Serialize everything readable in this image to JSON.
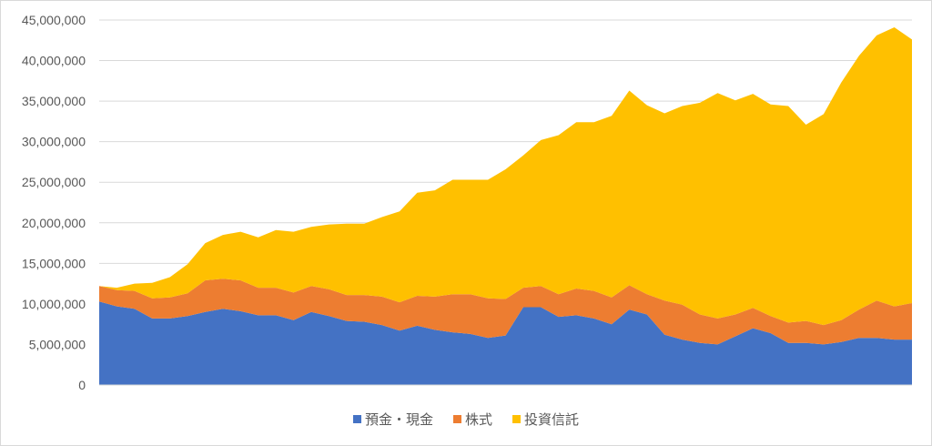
{
  "chart_data": {
    "type": "area",
    "stacked": true,
    "title": "",
    "xlabel": "",
    "ylabel": "",
    "ylim": [
      0,
      45000000
    ],
    "yticks": [
      0,
      5000000,
      10000000,
      15000000,
      20000000,
      25000000,
      30000000,
      35000000,
      40000000,
      45000000
    ],
    "ytick_labels": [
      "0",
      "5,000,000",
      "10,000,000",
      "15,000,000",
      "20,000,000",
      "25,000,000",
      "30,000,000",
      "35,000,000",
      "40,000,000",
      "45,000,000"
    ],
    "grid": true,
    "legend_position": "bottom",
    "x": [
      1,
      2,
      3,
      4,
      5,
      6,
      7,
      8,
      9,
      10,
      11,
      12,
      13,
      14,
      15,
      16,
      17,
      18,
      19,
      20,
      21,
      22,
      23,
      24,
      25,
      26,
      27,
      28,
      29,
      30,
      31,
      32,
      33,
      34,
      35,
      36,
      37,
      38,
      39,
      40,
      41,
      42,
      43,
      44,
      45,
      46,
      47
    ],
    "series": [
      {
        "name": "預金・現金",
        "color": "#4472C4",
        "values": [
          10300000,
          9700000,
          9400000,
          8200000,
          8200000,
          8500000,
          9000000,
          9400000,
          9100000,
          8600000,
          8600000,
          8000000,
          9000000,
          8500000,
          7900000,
          7800000,
          7400000,
          6700000,
          7300000,
          6800000,
          6500000,
          6300000,
          5800000,
          6100000,
          9600000,
          9600000,
          8400000,
          8600000,
          8200000,
          7500000,
          9300000,
          8700000,
          6200000,
          5600000,
          5200000,
          5000000,
          6000000,
          7000000,
          6400000,
          5200000,
          5200000,
          5000000,
          5300000,
          5800000,
          5800000,
          5600000,
          5600000
        ]
      },
      {
        "name": "株式",
        "color": "#ED7D31",
        "values": [
          1900000,
          2000000,
          2200000,
          2500000,
          2600000,
          2800000,
          3900000,
          3700000,
          3800000,
          3400000,
          3400000,
          3400000,
          3200000,
          3300000,
          3200000,
          3300000,
          3500000,
          3500000,
          3700000,
          4100000,
          4700000,
          4900000,
          4900000,
          4500000,
          2400000,
          2600000,
          2800000,
          3300000,
          3400000,
          3300000,
          3000000,
          2500000,
          4200000,
          4300000,
          3500000,
          3200000,
          2700000,
          2500000,
          2100000,
          2500000,
          2700000,
          2400000,
          2700000,
          3500000,
          4600000,
          4100000,
          4500000
        ]
      },
      {
        "name": "投資信託",
        "color": "#FFC000",
        "values": [
          0,
          300000,
          900000,
          1900000,
          2500000,
          3600000,
          4600000,
          5400000,
          6000000,
          6200000,
          7100000,
          7500000,
          7300000,
          8000000,
          8800000,
          8800000,
          9800000,
          11200000,
          12700000,
          13100000,
          14100000,
          14100000,
          14600000,
          16000000,
          16300000,
          18000000,
          19600000,
          20500000,
          20800000,
          22400000,
          24000000,
          23300000,
          23100000,
          24500000,
          26100000,
          27800000,
          26400000,
          26400000,
          26100000,
          26700000,
          24200000,
          26000000,
          29300000,
          31300000,
          32700000,
          34400000,
          32500000
        ]
      }
    ],
    "totals_approx": [
      12200000,
      12000000,
      12500000,
      12600000,
      13300000,
      14900000,
      17500000,
      18500000,
      18900000,
      18200000,
      19100000,
      18900000,
      19500000,
      19800000,
      19900000,
      19900000,
      20700000,
      21400000,
      23700000,
      24000000,
      25300000,
      25300000,
      25300000,
      26600000,
      28300000,
      30200000,
      30800000,
      32400000,
      32400000,
      33200000,
      36300000,
      34500000,
      33500000,
      34400000,
      34800000,
      36000000,
      35100000,
      35900000,
      34600000,
      34400000,
      32100000,
      33400000,
      37300000,
      40600000,
      43100000,
      44100000,
      42600000
    ]
  },
  "legend": {
    "items": [
      {
        "label": "預金・現金",
        "color": "#4472C4"
      },
      {
        "label": "株式",
        "color": "#ED7D31"
      },
      {
        "label": "投資信託",
        "color": "#FFC000"
      }
    ]
  }
}
